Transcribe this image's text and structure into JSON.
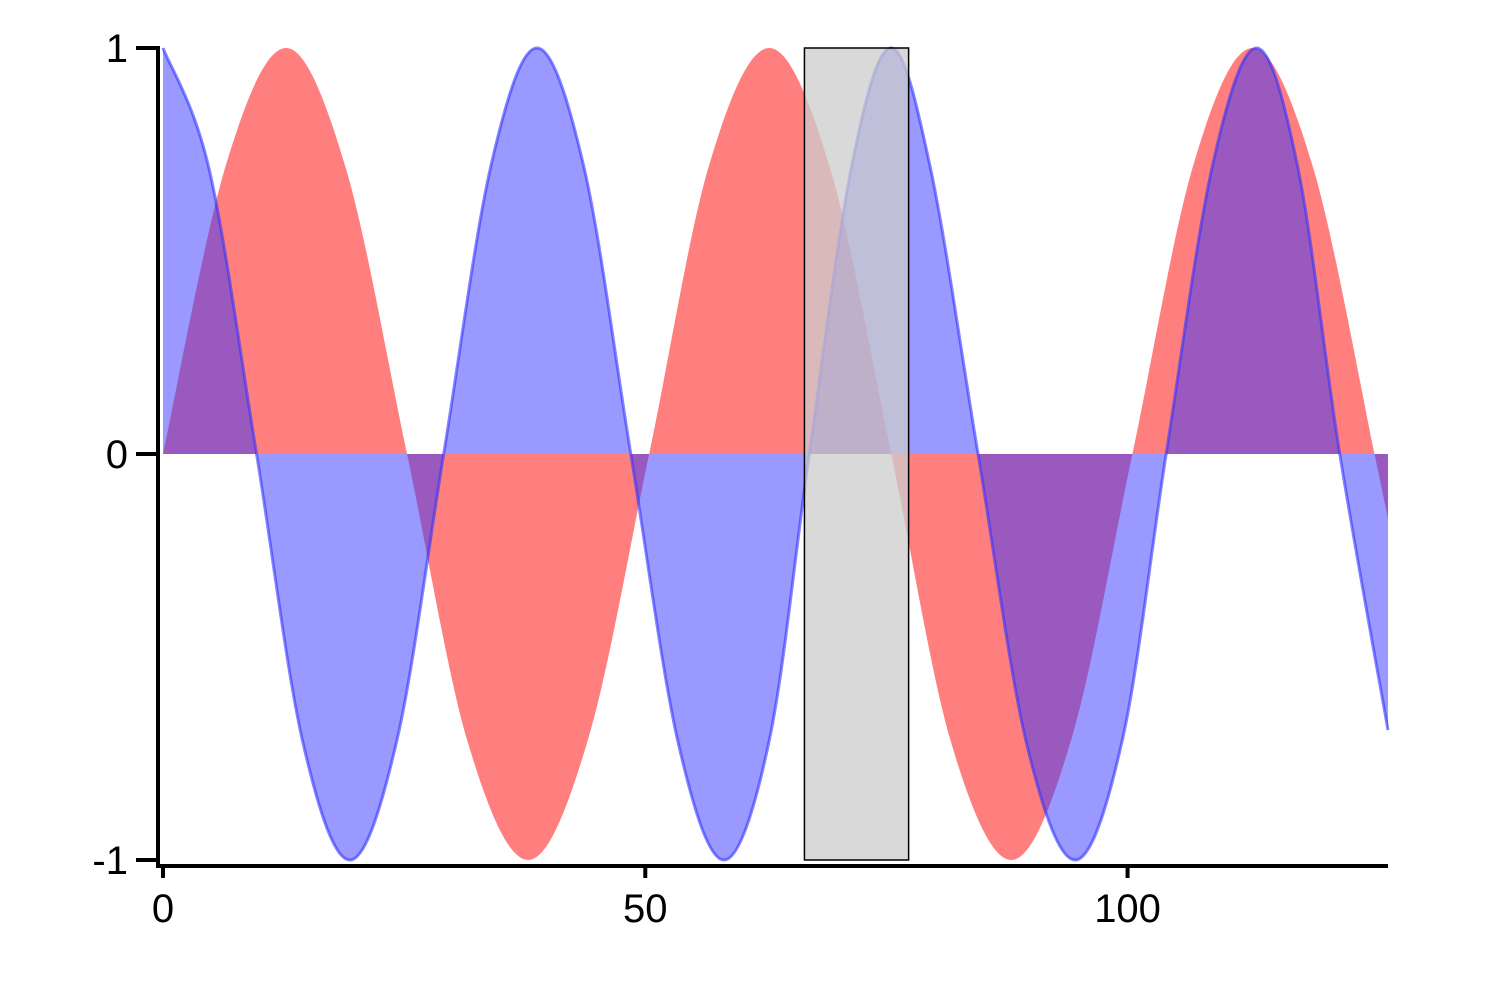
{
  "chart_data": {
    "type": "area",
    "title": "",
    "xlabel": "",
    "ylabel": "",
    "xlim": [
      0,
      127
    ],
    "ylim": [
      -1,
      1
    ],
    "x_ticks": [
      0,
      50,
      100
    ],
    "x_tick_labels": [
      "0",
      "50",
      "100"
    ],
    "y_ticks": [
      1,
      0,
      -1
    ],
    "y_tick_labels": [
      "1",
      "0",
      "-1"
    ],
    "grid": false,
    "legend": false,
    "series": [
      {
        "color": "#ff0000",
        "opacity": 0.5,
        "baseline": 0,
        "outline": false,
        "x": [
          0,
          6.5,
          12.8,
          19,
          25.3,
          31.6,
          37.9,
          44.1,
          50.4,
          56.6,
          62.9,
          69.2,
          75.5,
          81.7,
          88.0,
          94.2,
          100.5,
          106.8,
          113.0,
          119.3,
          125.6,
          127
        ],
        "y": [
          0.0,
          0.71,
          1.0,
          0.7,
          0.0,
          -0.71,
          -1.0,
          -0.7,
          0.0,
          0.71,
          1.0,
          0.7,
          0.0,
          -0.71,
          -1.0,
          -0.7,
          0.0,
          0.71,
          1.0,
          0.7,
          0.0,
          -0.16
        ]
      },
      {
        "color": "#3333ff",
        "opacity": 0.5,
        "baseline": 0,
        "outline": true,
        "x": [
          0,
          4.8,
          9.7,
          14.5,
          19.4,
          24.3,
          29.1,
          34.0,
          38.8,
          43.7,
          48.5,
          53.4,
          58.2,
          62.9,
          67.0,
          71.4,
          75.5,
          79.6,
          84.5,
          89.5,
          94.6,
          99.5,
          104.0,
          108.8,
          113.4,
          117.7,
          122.0,
          127
        ],
        "y": [
          1.0,
          0.7,
          0.0,
          -0.71,
          -1.0,
          -0.7,
          0.0,
          0.71,
          1.0,
          0.7,
          0.0,
          -0.71,
          -1.0,
          -0.7,
          0.0,
          0.71,
          1.0,
          0.7,
          0.0,
          -0.71,
          -1.0,
          -0.7,
          0.0,
          0.71,
          1.0,
          0.7,
          0.0,
          -0.68
        ]
      }
    ],
    "highlight_band": {
      "x0": 66.5,
      "x1": 77.3,
      "y0": -1,
      "y1": 1,
      "color": "#cccccc"
    }
  }
}
